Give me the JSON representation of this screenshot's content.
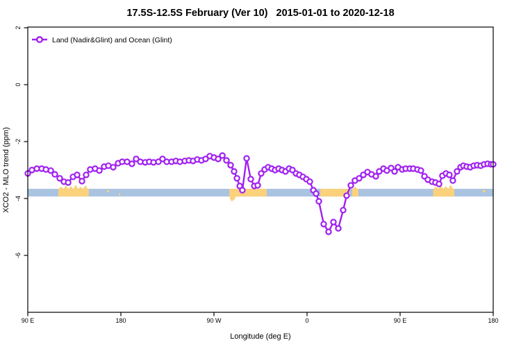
{
  "title": "17.5S-12.5S February (Ver 10)   2015-01-01 to 2020-12-18",
  "legend": {
    "label": "Land (Nadir&Glint) and Ocean (Glint)"
  },
  "colors": {
    "series_purple": "#A020F0",
    "ocean_band_blue": "#A9C3E1",
    "land_band_orange": "#FBD17C",
    "axis_black": "#000000"
  },
  "chart_data": {
    "type": "line",
    "title": "17.5S-12.5S February (Ver 10)   2015-01-01 to 2020-12-18",
    "xlabel": "Longitude (deg E)",
    "ylabel": "XCO2 - MLO trend (ppm)",
    "legend_position": "top-left-inside",
    "grid": false,
    "x_axis": {
      "range_deg": [
        90,
        540
      ],
      "ticks": [
        {
          "deg": 90,
          "label": "90 E"
        },
        {
          "deg": 180,
          "label": "180"
        },
        {
          "deg": 270,
          "label": "90 W"
        },
        {
          "deg": 360,
          "label": "0"
        },
        {
          "deg": 450,
          "label": "90 E"
        },
        {
          "deg": 540,
          "label": "180"
        }
      ]
    },
    "y_axis": {
      "range": [
        2.0,
        -8.0
      ],
      "ticks": [
        2,
        0,
        -2,
        -4,
        -6
      ],
      "tick_labels": [
        "2",
        "0",
        "-2",
        "-4",
        "-6"
      ]
    },
    "surface_band": {
      "value_range": [
        -3.66,
        -3.93
      ],
      "ocean_range_deg": [
        90,
        540
      ],
      "land_segments": [
        {
          "deg": [
            119.5,
            149.0
          ],
          "bumpy": true
        },
        {
          "deg": [
            166.5,
            168.5
          ],
          "thin": true
        },
        {
          "deg": [
            178.0,
            179.5
          ],
          "thin": true,
          "low": true
        },
        {
          "deg": [
            284.8,
            321.0
          ],
          "tab_below": true
        },
        {
          "deg": [
            372.8,
            401.6
          ],
          "bumpy": false
        },
        {
          "deg": [
            403.6,
            409.7
          ],
          "bumpy": true
        },
        {
          "deg": [
            482.0,
            502.5
          ],
          "bumpy": true
        },
        {
          "deg": [
            529.9,
            532.6
          ],
          "thin": true
        }
      ]
    },
    "series": [
      {
        "name": "Land (Nadir&Glint) and Ocean (Glint)",
        "marker": "open-circle",
        "points": [
          [
            90.0,
            -3.12
          ],
          [
            94.0,
            -3.0
          ],
          [
            98.7,
            -2.95
          ],
          [
            103.4,
            -2.95
          ],
          [
            107.5,
            -2.98
          ],
          [
            112.2,
            -3.02
          ],
          [
            116.2,
            -3.15
          ],
          [
            120.9,
            -3.29
          ],
          [
            124.9,
            -3.41
          ],
          [
            129.0,
            -3.44
          ],
          [
            133.7,
            -3.24
          ],
          [
            137.7,
            -3.17
          ],
          [
            142.4,
            -3.39
          ],
          [
            146.4,
            -3.17
          ],
          [
            150.4,
            -2.98
          ],
          [
            155.1,
            -2.95
          ],
          [
            159.2,
            -3.02
          ],
          [
            163.9,
            -2.88
          ],
          [
            167.9,
            -2.85
          ],
          [
            172.6,
            -2.9
          ],
          [
            177.3,
            -2.76
          ],
          [
            181.3,
            -2.71
          ],
          [
            186.0,
            -2.71
          ],
          [
            190.7,
            -2.78
          ],
          [
            194.8,
            -2.61
          ],
          [
            198.8,
            -2.71
          ],
          [
            203.5,
            -2.73
          ],
          [
            207.5,
            -2.71
          ],
          [
            211.6,
            -2.73
          ],
          [
            216.3,
            -2.71
          ],
          [
            220.3,
            -2.61
          ],
          [
            224.3,
            -2.71
          ],
          [
            229.0,
            -2.71
          ],
          [
            233.1,
            -2.68
          ],
          [
            237.1,
            -2.71
          ],
          [
            241.8,
            -2.68
          ],
          [
            245.8,
            -2.66
          ],
          [
            249.8,
            -2.68
          ],
          [
            253.9,
            -2.63
          ],
          [
            257.9,
            -2.66
          ],
          [
            261.9,
            -2.61
          ],
          [
            266.0,
            -2.51
          ],
          [
            270.0,
            -2.56
          ],
          [
            274.0,
            -2.61
          ],
          [
            278.1,
            -2.49
          ],
          [
            282.1,
            -2.66
          ],
          [
            286.1,
            -2.83
          ],
          [
            289.5,
            -3.05
          ],
          [
            292.2,
            -3.29
          ],
          [
            294.9,
            -3.56
          ],
          [
            297.5,
            -3.71
          ],
          [
            301.6,
            -2.59
          ],
          [
            305.6,
            -3.32
          ],
          [
            309.0,
            -3.56
          ],
          [
            312.3,
            -3.54
          ],
          [
            315.7,
            -3.12
          ],
          [
            319.0,
            -2.98
          ],
          [
            322.4,
            -2.9
          ],
          [
            325.8,
            -2.95
          ],
          [
            329.1,
            -3.0
          ],
          [
            332.5,
            -2.95
          ],
          [
            335.8,
            -3.0
          ],
          [
            339.2,
            -3.05
          ],
          [
            342.6,
            -2.95
          ],
          [
            345.9,
            -3.0
          ],
          [
            349.3,
            -3.12
          ],
          [
            352.6,
            -3.17
          ],
          [
            356.0,
            -3.24
          ],
          [
            359.3,
            -3.32
          ],
          [
            362.7,
            -3.41
          ],
          [
            366.1,
            -3.71
          ],
          [
            368.7,
            -3.83
          ],
          [
            371.4,
            -4.1
          ],
          [
            376.1,
            -4.9
          ],
          [
            380.8,
            -5.17
          ],
          [
            385.5,
            -4.83
          ],
          [
            390.2,
            -5.05
          ],
          [
            394.9,
            -4.41
          ],
          [
            398.3,
            -3.9
          ],
          [
            402.3,
            -3.54
          ],
          [
            406.3,
            -3.37
          ],
          [
            410.4,
            -3.29
          ],
          [
            414.4,
            -3.17
          ],
          [
            418.4,
            -3.07
          ],
          [
            422.4,
            -3.15
          ],
          [
            426.5,
            -3.22
          ],
          [
            429.8,
            -3.05
          ],
          [
            433.9,
            -2.95
          ],
          [
            437.2,
            -3.02
          ],
          [
            441.3,
            -2.93
          ],
          [
            444.6,
            -3.05
          ],
          [
            448.0,
            -2.9
          ],
          [
            452.0,
            -2.98
          ],
          [
            455.4,
            -2.95
          ],
          [
            459.4,
            -2.95
          ],
          [
            462.7,
            -2.95
          ],
          [
            466.8,
            -2.98
          ],
          [
            470.1,
            -3.02
          ],
          [
            473.5,
            -3.22
          ],
          [
            476.8,
            -3.34
          ],
          [
            480.9,
            -3.41
          ],
          [
            484.2,
            -3.44
          ],
          [
            487.6,
            -3.49
          ],
          [
            490.9,
            -3.2
          ],
          [
            494.3,
            -3.12
          ],
          [
            497.6,
            -3.17
          ],
          [
            501.0,
            -3.37
          ],
          [
            505.0,
            -3.05
          ],
          [
            508.4,
            -2.9
          ],
          [
            511.1,
            -2.85
          ],
          [
            514.4,
            -2.88
          ],
          [
            517.8,
            -2.9
          ],
          [
            521.1,
            -2.85
          ],
          [
            524.5,
            -2.83
          ],
          [
            527.9,
            -2.85
          ],
          [
            531.2,
            -2.8
          ],
          [
            534.6,
            -2.78
          ],
          [
            537.9,
            -2.8
          ],
          [
            540.0,
            -2.8
          ]
        ]
      }
    ]
  }
}
